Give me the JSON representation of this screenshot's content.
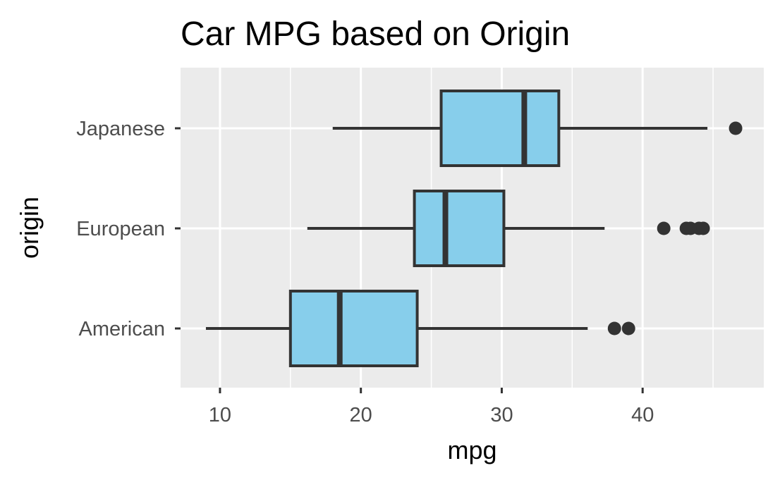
{
  "chart_data": {
    "type": "boxplot",
    "orientation": "horizontal",
    "title": "Car MPG based on Origin",
    "xlabel": "mpg",
    "ylabel": "origin",
    "xlim": [
      7.2,
      48.6
    ],
    "x_ticks": [
      10,
      20,
      30,
      40
    ],
    "grid": true,
    "legend": "none",
    "colors": {
      "panel_background": "#ebebeb",
      "grid": "#ffffff",
      "box_fill": "#87ceeb",
      "box_stroke": "#333333",
      "outlier": "#333333"
    },
    "categories": [
      "American",
      "European",
      "Japanese"
    ],
    "boxes": [
      {
        "category": "American",
        "whisker_low": 9,
        "q1": 15,
        "median": 18.5,
        "q3": 24,
        "whisker_high": 36.1,
        "outliers": [
          38,
          39
        ]
      },
      {
        "category": "European",
        "whisker_low": 16.2,
        "q1": 23.8,
        "median": 26,
        "q3": 30.15,
        "whisker_high": 37.3,
        "outliers": [
          41.5,
          43.1,
          43.4,
          44,
          44.3
        ]
      },
      {
        "category": "Japanese",
        "whisker_low": 18,
        "q1": 25.7,
        "median": 31.6,
        "q3": 34.05,
        "whisker_high": 44.6,
        "outliers": [
          46.6
        ]
      }
    ]
  }
}
